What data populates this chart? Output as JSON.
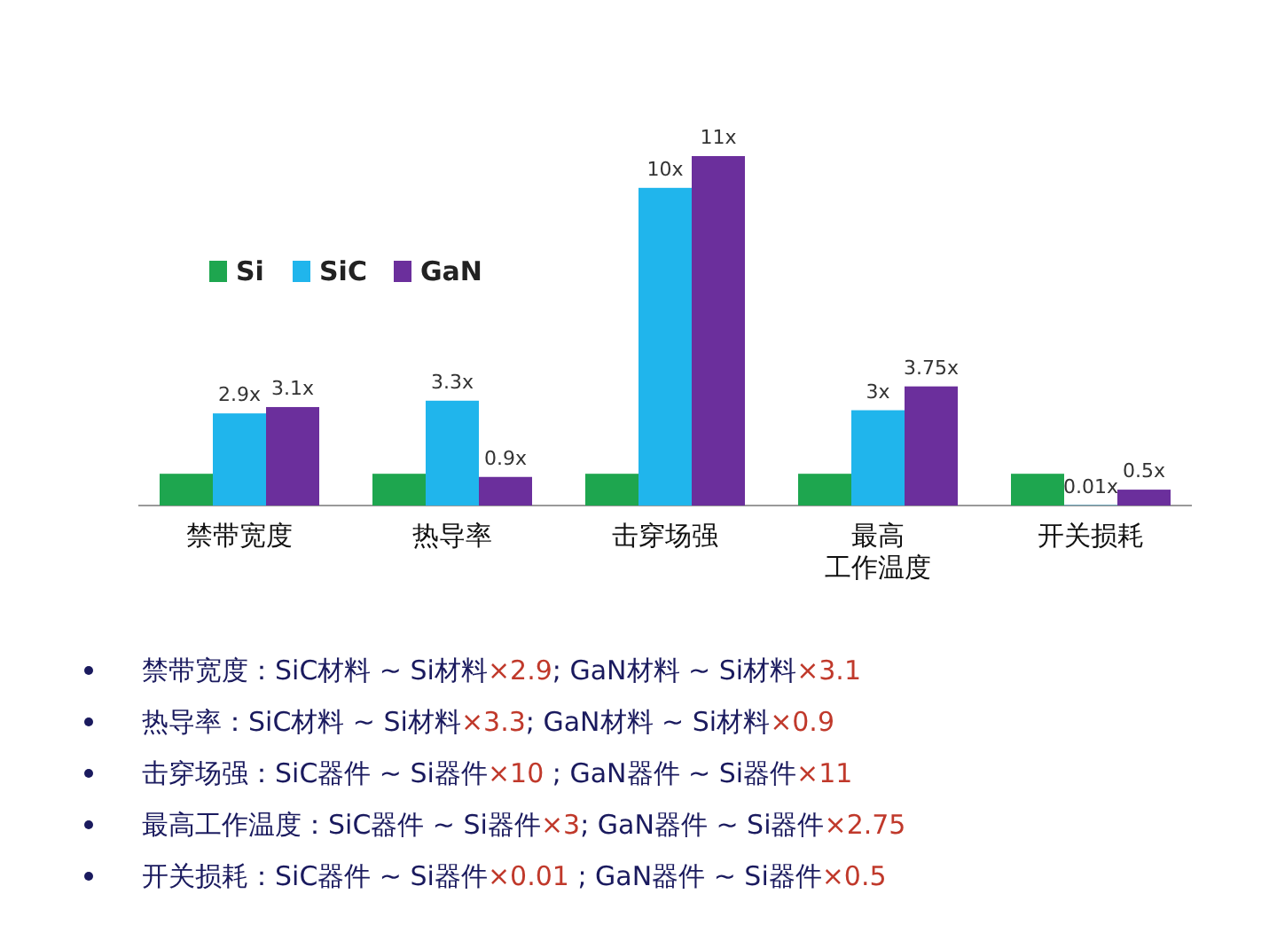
{
  "chart_data": {
    "type": "bar",
    "legend": "top left",
    "categories": [
      "禁带宽度",
      "热导率",
      "击穿场强",
      "最高工作温度",
      "开关损耗"
    ],
    "series": [
      {
        "name": "Si",
        "color": "#1ea64f",
        "values": [
          1,
          1,
          1,
          1,
          1
        ]
      },
      {
        "name": "SiC",
        "color": "#20b5ec",
        "values": [
          2.9,
          3.3,
          10,
          3,
          0.01
        ],
        "value_labels": [
          "2.9x",
          "3.3x",
          "10x",
          "3x",
          "0.01x"
        ]
      },
      {
        "name": "GaN",
        "color": "#6b2f9c",
        "values": [
          3.1,
          0.9,
          11,
          3.75,
          0.5
        ],
        "value_labels": [
          "3.1x",
          "0.9x",
          "11x",
          "3.75x",
          "0.5x"
        ]
      }
    ],
    "annotations": [
      "禁带宽度：SiC材料 ~ Si材料×2.9; GaN材料 ~ Si材料×3.1",
      "热导率：SiC材料 ~ Si材料×3.3; GaN材料 ~ Si材料×0.9",
      "击穿场强：SiC器件 ~ Si器件×10 ; GaN器件 ~ Si器件×11",
      "最高工作温度：SiC器件 ~ Si器件×3; GaN器件 ~ Si器件×2.75",
      "开关损耗：SiC器件 ~ Si器件×0.01 ; GaN器件 ~ Si器件×0.5"
    ]
  }
}
